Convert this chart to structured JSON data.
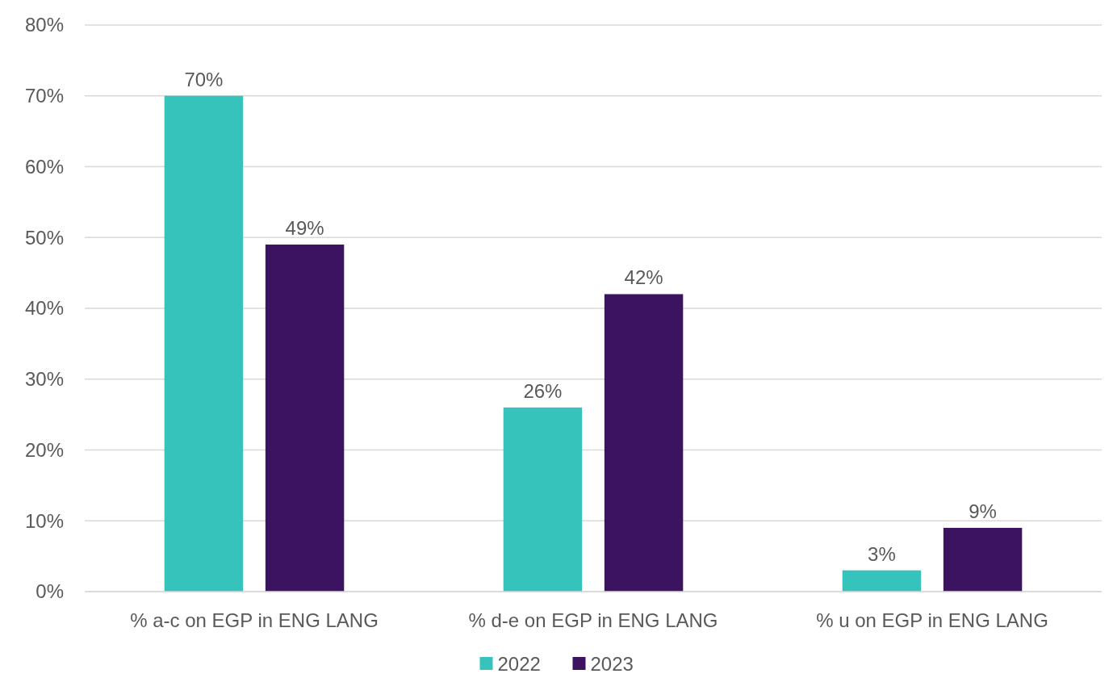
{
  "chart_data": {
    "type": "bar",
    "categories": [
      "% a-c on EGP in ENG LANG",
      "% d-e on EGP in ENG LANG",
      "% u on EGP in ENG LANG"
    ],
    "series": [
      {
        "name": "2022",
        "color": "#36c3bc",
        "values": [
          70,
          26,
          3
        ],
        "value_labels": [
          "70%",
          "26%",
          "3%"
        ]
      },
      {
        "name": "2023",
        "color": "#3c1361",
        "values": [
          49,
          42,
          9
        ],
        "value_labels": [
          "49%",
          "42%",
          "9%"
        ]
      }
    ],
    "ylim": [
      0,
      80
    ],
    "yticks": [
      {
        "value": 0,
        "label": "0%"
      },
      {
        "value": 10,
        "label": "10%"
      },
      {
        "value": 20,
        "label": "20%"
      },
      {
        "value": 30,
        "label": "30%"
      },
      {
        "value": 40,
        "label": "40%"
      },
      {
        "value": 50,
        "label": "50%"
      },
      {
        "value": 60,
        "label": "60%"
      },
      {
        "value": 70,
        "label": "70%"
      },
      {
        "value": 80,
        "label": "80%"
      }
    ],
    "grid": "y",
    "legend": "bottom"
  }
}
